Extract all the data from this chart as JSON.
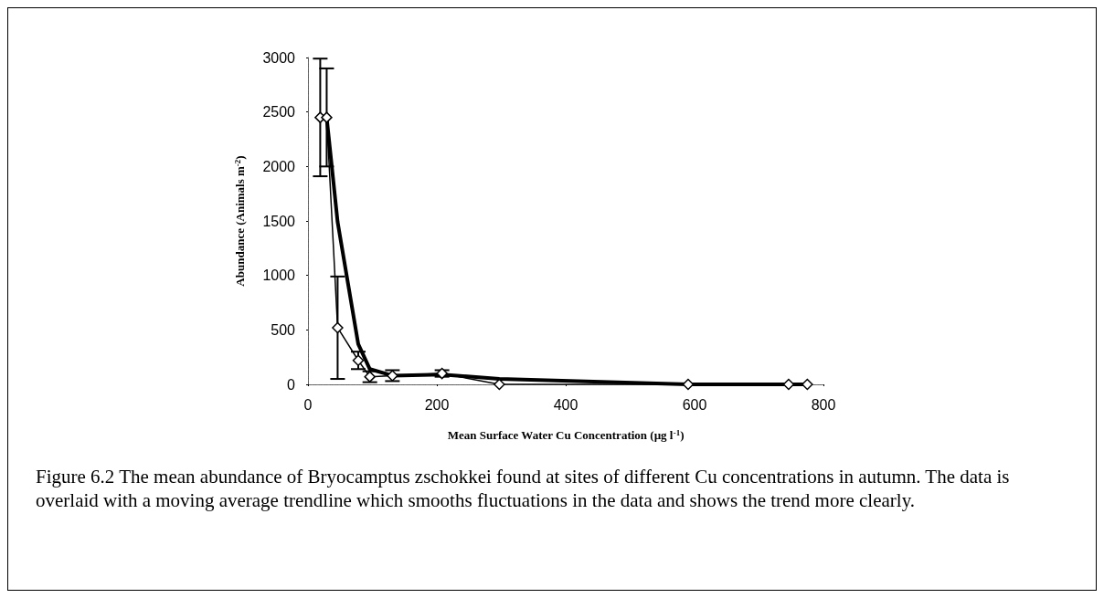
{
  "chart_data": {
    "type": "line",
    "xlabel": "Mean Surface Water Cu Concentration (µg l$^{-1}$)",
    "ylabel": "Abundance (Animals m$^{-2}$)",
    "annotations": [
      "Figure 6.2 The mean abundance of Bryocamptus zschokkei found at sites of different Cu concentrations in autumn. The data is overlaid with a moving average trendline which smooths fluctuations in the data and shows the trend more clearly."
    ],
    "x": [
      19,
      29,
      46,
      78,
      96,
      131,
      208,
      297,
      590,
      746,
      775
    ],
    "series": [
      {
        "color": "#000000",
        "marker": "diamond",
        "values": [
          2450,
          2450,
          520,
          220,
          70,
          80,
          100,
          0,
          0,
          0,
          0
        ],
        "errors": [
          540,
          450,
          470,
          80,
          50,
          50,
          30,
          null,
          null,
          null,
          null
        ]
      },
      {
        "type": "line",
        "color": "#000000",
        "marker": "none",
        "x": [
          29,
          46,
          78,
          96,
          131,
          208,
          297,
          590,
          746,
          775
        ],
        "values": [
          2450,
          1490,
          370,
          140,
          80,
          90,
          50,
          0,
          0,
          0
        ]
      }
    ],
    "xlim": [
      0,
      800
    ],
    "xticks": [
      0,
      200,
      400,
      600,
      800
    ],
    "ylim": [
      0,
      3000
    ],
    "yticks": [
      0,
      500,
      1000,
      1500,
      2000,
      2500,
      3000
    ],
    "grid": false
  }
}
